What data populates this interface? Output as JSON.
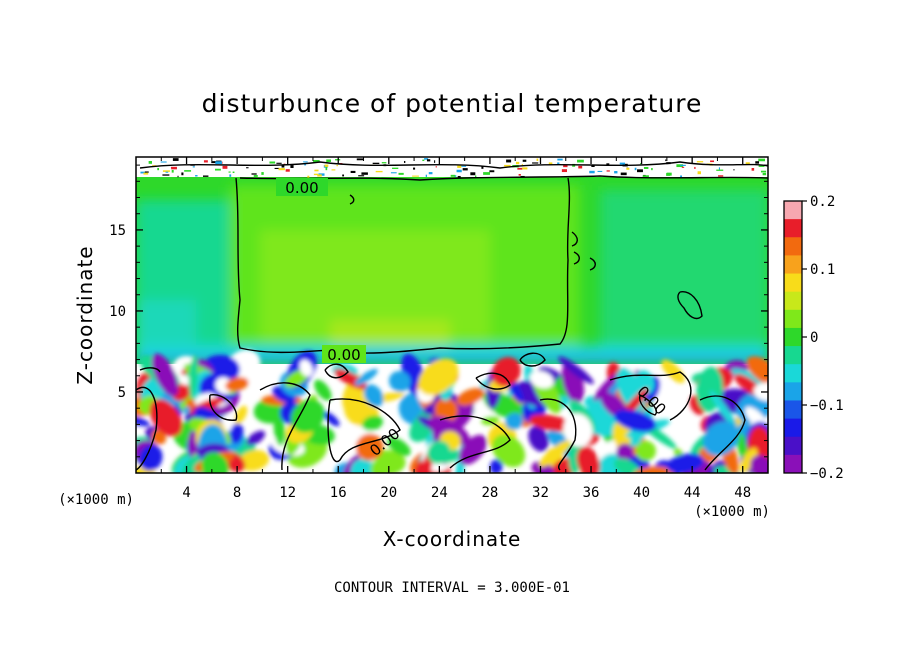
{
  "chart_data": {
    "type": "heatmap",
    "title": "disturbunce of potential temperature",
    "xlabel": "X-coordinate",
    "ylabel": "Z-coordinate",
    "x_unit_label": "(×1000 m)",
    "x_unit_label_right": "(×1000 m)",
    "xlim": [
      0,
      50
    ],
    "ylim": [
      0,
      19.5
    ],
    "x_ticks": [
      4,
      8,
      12,
      16,
      20,
      24,
      28,
      32,
      36,
      40,
      44,
      48
    ],
    "x_tick_labels": [
      "4",
      "8",
      "12",
      "16",
      "20",
      "24",
      "28",
      "32",
      "36",
      "40",
      "44",
      "48"
    ],
    "y_ticks": [
      5,
      10,
      15
    ],
    "y_tick_labels": [
      "5",
      "10",
      "15"
    ],
    "colorbar": {
      "range": [
        -0.2,
        0.2
      ],
      "ticks": [
        0.2,
        0.1,
        0,
        -0.1,
        -0.2
      ],
      "tick_labels": [
        "0.2",
        "0.1",
        "0",
        "−0.1",
        "−0.2"
      ],
      "colors": [
        "#f7a8b0",
        "#e81e2a",
        "#f26a0f",
        "#f8a21c",
        "#f8dc1a",
        "#c8e81a",
        "#7fe81a",
        "#2ed82a",
        "#17d890",
        "#1ad8d8",
        "#1aa4e8",
        "#1a56e8",
        "#1a1ae8",
        "#4a10c8",
        "#8a10b8"
      ]
    },
    "contour_labels": [
      "0.00",
      "0.00",
      "0.00",
      "0.00"
    ],
    "contour_interval_text": "CONTOUR INTERVAL = 3.000E-01",
    "regions": {
      "upper_layer": {
        "z_range": [
          6.5,
          18.5
        ],
        "value": 0.02
      },
      "upper_core": {
        "x_range": [
          6.5,
          34.5
        ],
        "z_range": [
          7.5,
          18.3
        ],
        "value": 0.04
      },
      "lower_layer": {
        "z_range": [
          0,
          6.5
        ],
        "value": "mixed -0.2 to 0.2"
      },
      "top_band": {
        "z_range": [
          18.5,
          19.5
        ],
        "value": "noisy"
      }
    }
  }
}
